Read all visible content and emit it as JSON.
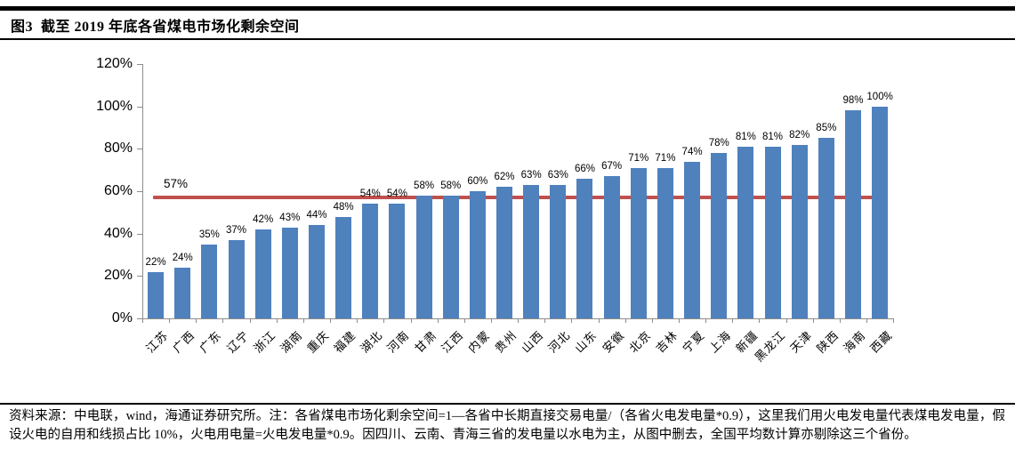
{
  "header": {
    "title": "图3  截至 2019 年底各省煤电市场化剩余空间"
  },
  "chart_data": {
    "type": "bar",
    "title": "截至 2019 年底各省煤电市场化剩余空间",
    "categories": [
      "江苏",
      "广西",
      "广东",
      "辽宁",
      "浙江",
      "湖南",
      "重庆",
      "福建",
      "湖北",
      "河南",
      "甘肃",
      "江西",
      "内蒙",
      "贵州",
      "山西",
      "河北",
      "山东",
      "安徽",
      "北京",
      "吉林",
      "宁夏",
      "上海",
      "新疆",
      "黑龙江",
      "天津",
      "陕西",
      "海南",
      "西藏"
    ],
    "values": [
      22,
      24,
      35,
      37,
      42,
      43,
      44,
      48,
      54,
      54,
      58,
      58,
      60,
      62,
      63,
      63,
      66,
      67,
      71,
      71,
      74,
      78,
      81,
      81,
      82,
      85,
      98,
      100
    ],
    "value_label_suffix": "%",
    "ylim": [
      0,
      120
    ],
    "ytick_step": 20,
    "yticklabels": [
      "0%",
      "20%",
      "40%",
      "60%",
      "80%",
      "100%",
      "120%"
    ],
    "grid": false,
    "legend": false,
    "bar_color": "#4F81BD",
    "axis_color": "#8c8c8c",
    "reference_line": {
      "value": 57,
      "label": "57%",
      "color": "#C0504D"
    }
  },
  "footnote": {
    "text": "资料来源：中电联，wind，海通证券研究所。注：各省煤电市场化剩余空间=1—各省中长期直接交易电量/（各省火电发电量*0.9），这里我们用火电发电量代表煤电发电量，假设火电的自用和线损占比 10%，火电用电量=火电发电量*0.9。因四川、云南、青海三省的发电量以水电为主，从图中删去，全国平均数计算亦剔除这三个省份。"
  }
}
